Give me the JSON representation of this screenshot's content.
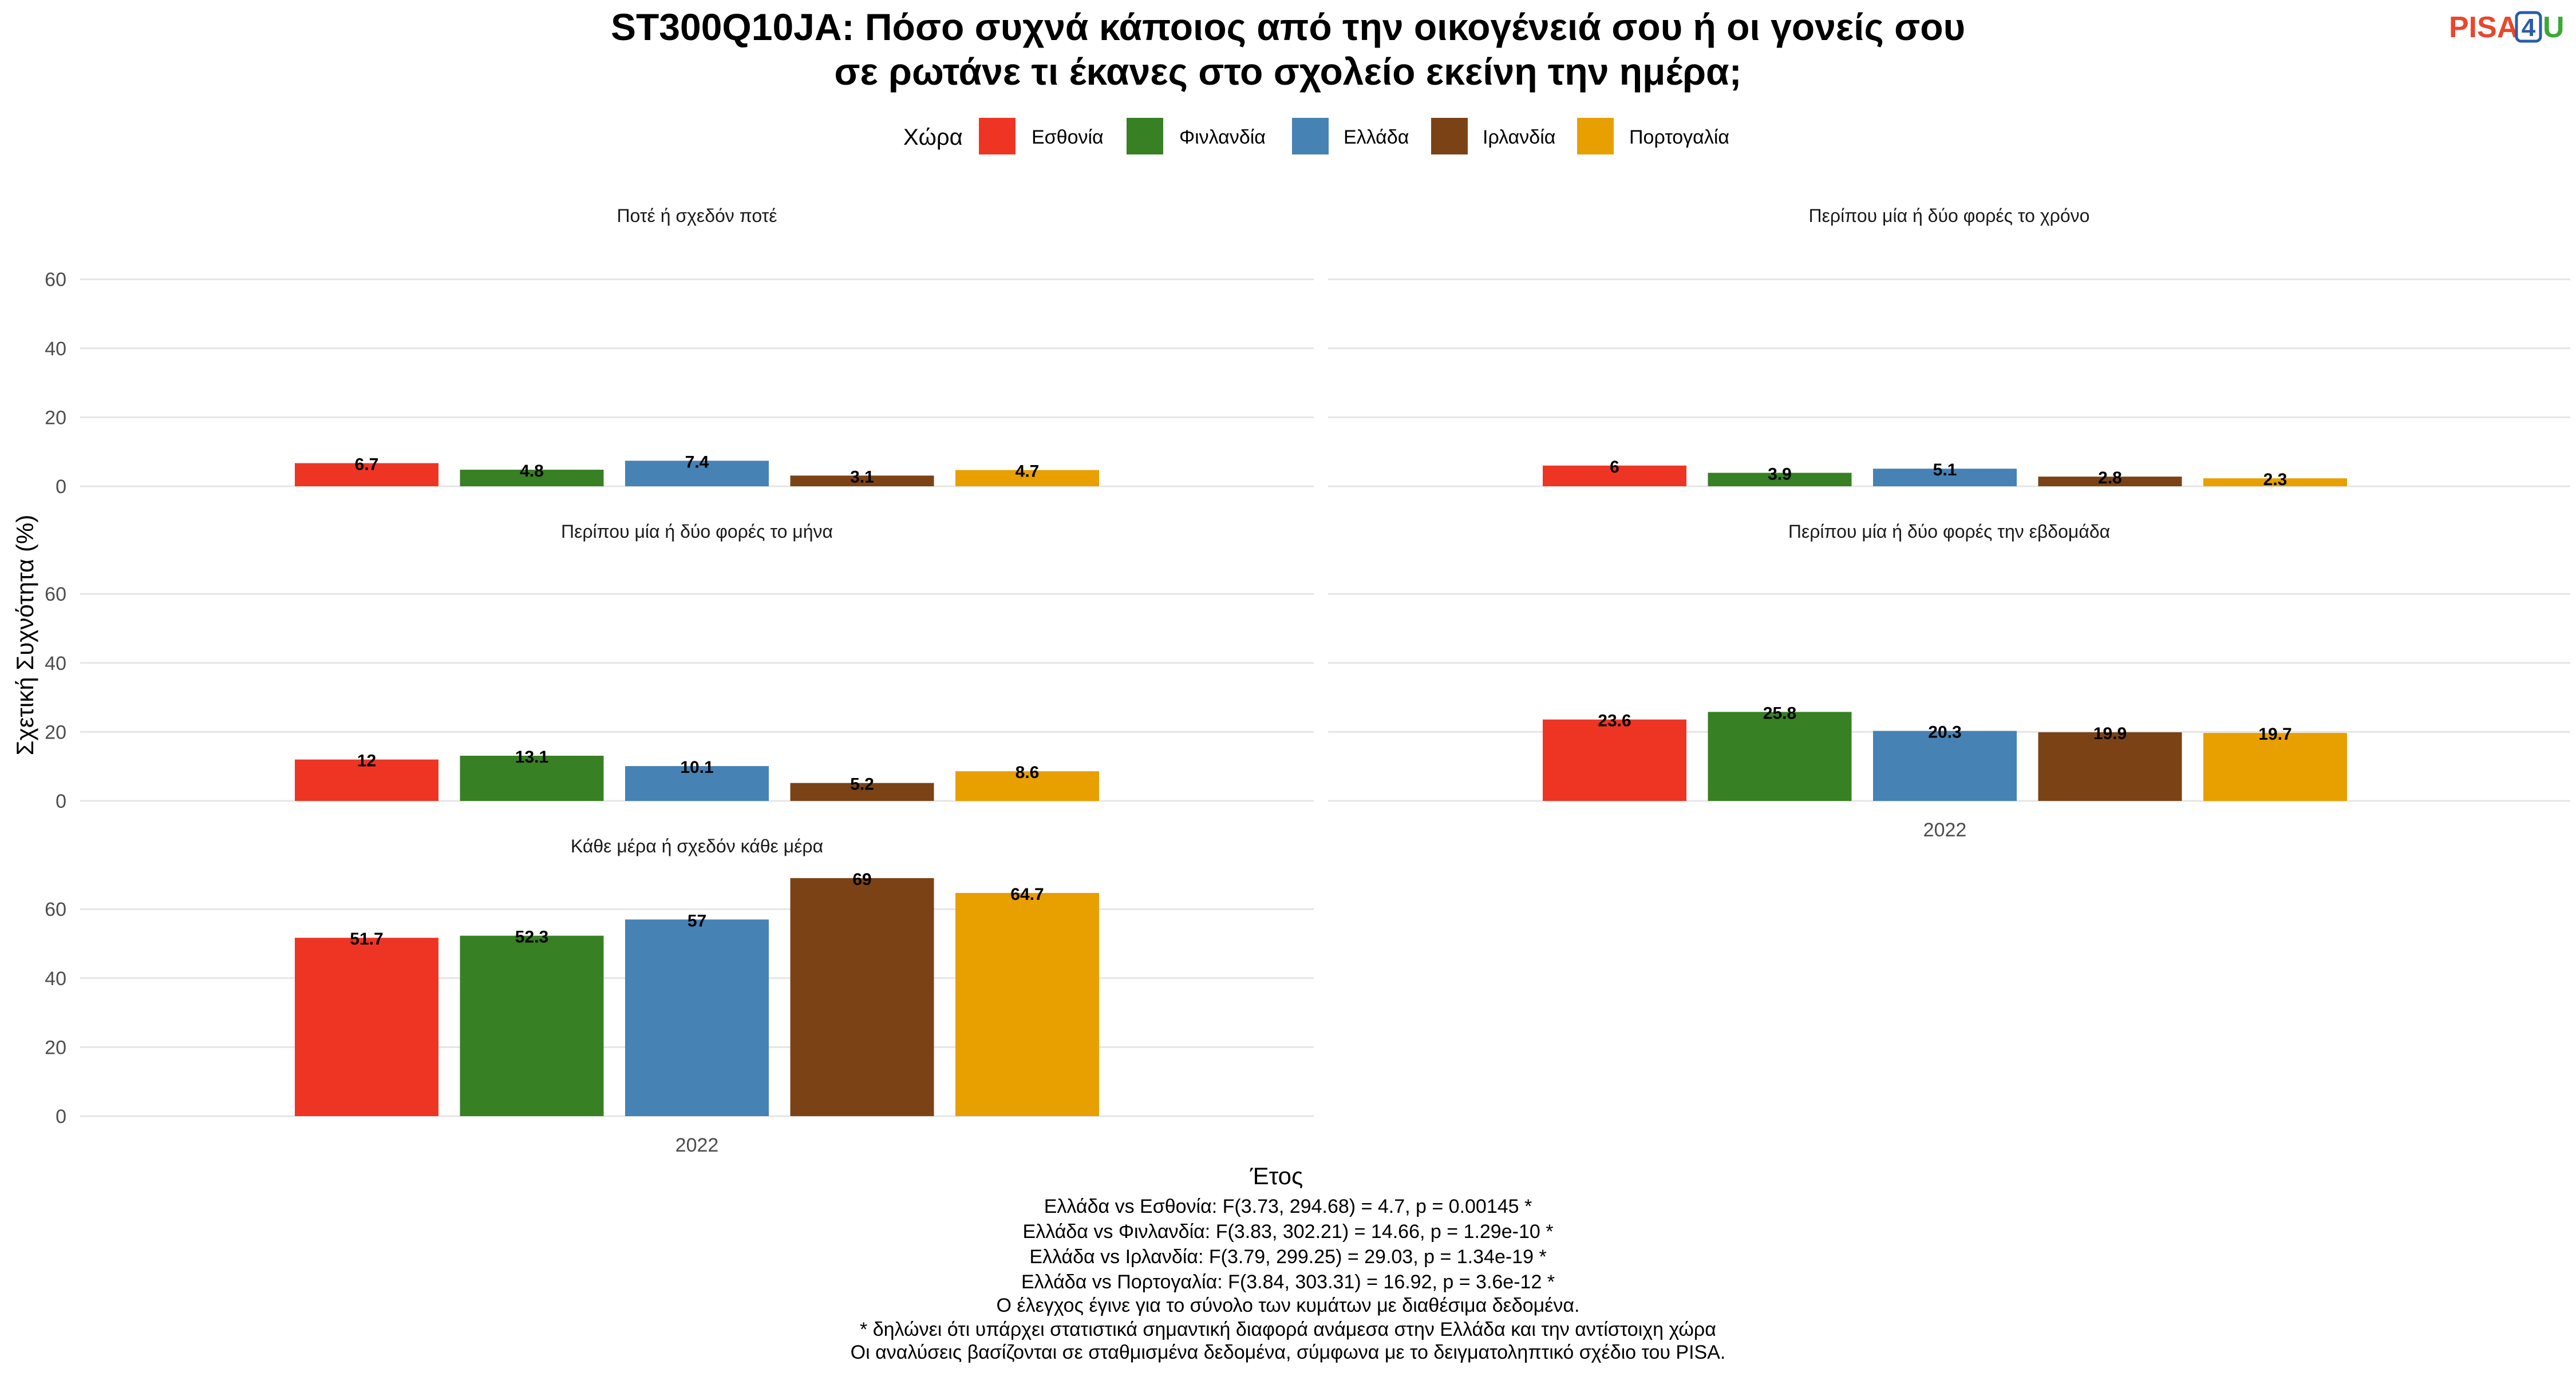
{
  "title_lines": [
    "ST300Q10JA: Πόσο συχνά κάποιος από την οικογένειά σου ή οι γονείς σου",
    "σε ρωτάνε τι έκανες στο σχολείο εκείνη την ημέρα;"
  ],
  "logo": {
    "part1": "PISA",
    "part2": "4",
    "part3": "U"
  },
  "legend": {
    "title": "Χώρα",
    "items": [
      {
        "label": "Εσθονία",
        "color": "#ee3524"
      },
      {
        "label": "Φινλανδία",
        "color": "#378024"
      },
      {
        "label": "Ελλάδα",
        "color": "#4682b4"
      },
      {
        "label": "Ιρλανδία",
        "color": "#7b4315"
      },
      {
        "label": "Πορτογαλία",
        "color": "#e89f00"
      }
    ]
  },
  "axes": {
    "ylabel": "Σχετική Συχνότητα (%)",
    "xlabel": "Έτος"
  },
  "notes": [
    "Ελλάδα vs Εσθονία: F(3.73, 294.68) = 4.7, p = 0.00145 *",
    "Ελλάδα vs Φινλανδία: F(3.83, 302.21) = 14.66, p = 1.29e-10 *",
    "Ελλάδα vs Ιρλανδία: F(3.79, 299.25) = 29.03, p = 1.34e-19 *",
    "Ελλάδα vs Πορτογαλία: F(3.84, 303.31) = 16.92, p = 3.6e-12 *",
    "Ο έλεγχος έγινε για το σύνολο των κυμάτων με διαθέσιμα δεδομένα.",
    "* δηλώνει ότι υπάρχει στατιστικά σημαντική διαφορά ανάμεσα στην Ελλάδα και την αντίστοιχη χώρα",
    "Οι αναλύσεις βασίζονται σε σταθμισμένα δεδομένα, σύμφωνα με το δειγματοληπτικό σχέδιο του PISA."
  ],
  "chart_data": {
    "type": "bar",
    "facet_by": "response",
    "categories": [
      "2022"
    ],
    "ylim": [
      0,
      70
    ],
    "yticks": [
      0,
      20,
      40,
      60
    ],
    "grid": true,
    "legend_position": "top",
    "series_names": [
      "Εσθονία",
      "Φινλανδία",
      "Ελλάδα",
      "Ιρλανδία",
      "Πορτογαλία"
    ],
    "panels": [
      {
        "title": "Ποτέ ή σχεδόν ποτέ",
        "labels": [
          "6.7",
          "4.8",
          "7.4",
          "3.1",
          "4.7"
        ],
        "values": [
          6.7,
          4.8,
          7.4,
          3.1,
          4.7
        ]
      },
      {
        "title": "Περίπου μία ή δύο φορές το χρόνο",
        "labels": [
          "6",
          "3.9",
          "5.1",
          "2.8",
          "2.3"
        ],
        "values": [
          6,
          3.9,
          5.1,
          2.8,
          2.3
        ]
      },
      {
        "title": "Περίπου μία ή δύο φορές το μήνα",
        "labels": [
          "12",
          "13.1",
          "10.1",
          "5.2",
          "8.6"
        ],
        "values": [
          12,
          13.1,
          10.1,
          5.2,
          8.6
        ]
      },
      {
        "title": "Περίπου μία ή δύο φορές την εβδομάδα",
        "labels": [
          "23.6",
          "25.8",
          "20.3",
          "19.9",
          "19.7"
        ],
        "values": [
          23.6,
          25.8,
          20.3,
          19.9,
          19.7
        ]
      },
      {
        "title": "Κάθε μέρα ή σχεδόν κάθε μέρα",
        "labels": [
          "51.7",
          "52.3",
          "57",
          "69",
          "64.7"
        ],
        "values": [
          51.7,
          52.3,
          57,
          69,
          64.7
        ]
      }
    ]
  }
}
